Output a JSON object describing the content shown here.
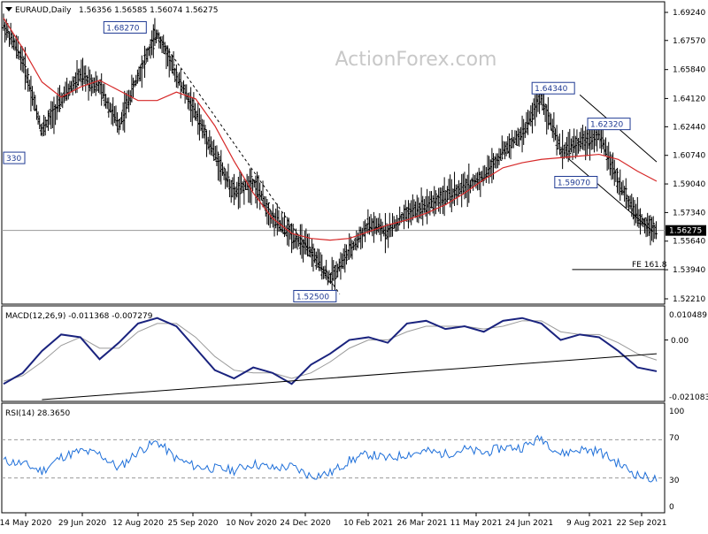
{
  "chart_data": {
    "type": "line",
    "symbol_title": "EURAUD,Daily",
    "ohlc_text": "1.56356 1.56585 1.56074 1.56275",
    "watermark": "ActionForex.com",
    "grid": false,
    "x_ticks": [
      "14 May 2020",
      "29 Jun 2020",
      "12 Aug 2020",
      "25 Sep 2020",
      "10 Nov 2020",
      "24 Dec 2020",
      "10 Feb 2021",
      "26 Mar 2021",
      "11 May 2021",
      "24 Jun 2021",
      "9 Aug 2021",
      "22 Sep 2021"
    ],
    "price_axis": {
      "ticks": [
        "1.69240",
        "1.67570",
        "1.65840",
        "1.64120",
        "1.62440",
        "1.60740",
        "1.59040",
        "1.57340",
        "1.55640",
        "1.53940",
        "1.52210"
      ],
      "ylim": [
        1.5221,
        1.6924
      ],
      "current_label": "1.56275",
      "current_value": 1.56275
    },
    "price_series": {
      "name": "EURAUD",
      "x": [
        0,
        10,
        20,
        30,
        40,
        50,
        60,
        70,
        80,
        90,
        100,
        110,
        120,
        130,
        140,
        150,
        160,
        170,
        180,
        190,
        200,
        210,
        220,
        230,
        240,
        250,
        260,
        270,
        280,
        290,
        300,
        310,
        320,
        330,
        340
      ],
      "values": [
        1.685,
        1.664,
        1.622,
        1.64,
        1.655,
        1.648,
        1.625,
        1.655,
        1.68,
        1.655,
        1.632,
        1.608,
        1.585,
        1.592,
        1.57,
        1.56,
        1.55,
        1.534,
        1.55,
        1.566,
        1.562,
        1.573,
        1.578,
        1.583,
        1.588,
        1.595,
        1.61,
        1.62,
        1.642,
        1.61,
        1.615,
        1.62,
        1.592,
        1.57,
        1.563
      ]
    },
    "moving_average": {
      "name": "MA",
      "color": "#d62828",
      "x": [
        0,
        10,
        20,
        30,
        40,
        50,
        60,
        70,
        80,
        90,
        100,
        110,
        120,
        130,
        140,
        150,
        160,
        170,
        180,
        190,
        200,
        210,
        220,
        230,
        240,
        250,
        260,
        270,
        280,
        290,
        300,
        310,
        320,
        330,
        340
      ],
      "values": [
        1.689,
        1.671,
        1.651,
        1.642,
        1.648,
        1.652,
        1.646,
        1.64,
        1.64,
        1.645,
        1.641,
        1.625,
        1.604,
        1.585,
        1.57,
        1.561,
        1.558,
        1.557,
        1.558,
        1.562,
        1.566,
        1.569,
        1.573,
        1.578,
        1.585,
        1.593,
        1.6,
        1.603,
        1.605,
        1.606,
        1.607,
        1.608,
        1.605,
        1.598,
        1.592
      ]
    },
    "annotations": [
      {
        "label": "1.68270",
        "x": 78,
        "y": 1.6827
      },
      {
        "label": "1.52500",
        "x": 175,
        "y": 1.525
      },
      {
        "label": "1.64340",
        "x": 300,
        "y": 1.6434
      },
      {
        "label": "1.62320",
        "x": 305,
        "y": 1.6232
      },
      {
        "label": "1.59070",
        "x": 298,
        "y": 1.5907
      },
      {
        "label": "330",
        "x": 0,
        "y": 1.603
      }
    ],
    "fe_label": "FE 161.8",
    "fe_value": 1.5395,
    "macd": {
      "title": "MACD(12,26,9) -0.011368 -0.007279",
      "ticks": [
        "0.010489",
        "0.00",
        "-0.021083"
      ],
      "ylim": [
        -0.021083,
        0.010489
      ],
      "macd_values": [
        -0.016,
        -0.012,
        -0.004,
        0.002,
        0.001,
        -0.007,
        -0.001,
        0.006,
        0.008,
        0.005,
        -0.003,
        -0.011,
        -0.014,
        -0.01,
        -0.012,
        -0.016,
        -0.009,
        -0.005,
        0.0,
        0.001,
        -0.001,
        0.006,
        0.007,
        0.004,
        0.005,
        0.003,
        0.007,
        0.008,
        0.006,
        0.0,
        0.002,
        0.001,
        -0.004,
        -0.01,
        -0.0114
      ],
      "signal_values": [
        -0.015,
        -0.013,
        -0.008,
        -0.002,
        0.001,
        -0.003,
        -0.003,
        0.003,
        0.006,
        0.006,
        0.001,
        -0.006,
        -0.011,
        -0.012,
        -0.012,
        -0.014,
        -0.012,
        -0.008,
        -0.003,
        0.0,
        0.0,
        0.003,
        0.005,
        0.005,
        0.005,
        0.004,
        0.005,
        0.007,
        0.007,
        0.003,
        0.002,
        0.002,
        -0.001,
        -0.005,
        -0.0073
      ]
    },
    "rsi": {
      "title": "RSI(14) 28.3650",
      "ticks": [
        "100",
        "70",
        "30",
        "0"
      ],
      "ylim": [
        0,
        100
      ],
      "levels": [
        70,
        30
      ],
      "values": [
        48,
        45,
        37,
        52,
        58,
        55,
        40,
        58,
        68,
        50,
        42,
        40,
        38,
        45,
        40,
        42,
        32,
        35,
        48,
        55,
        50,
        55,
        58,
        55,
        60,
        56,
        62,
        62,
        72,
        55,
        60,
        58,
        45,
        33,
        28.365
      ]
    }
  }
}
